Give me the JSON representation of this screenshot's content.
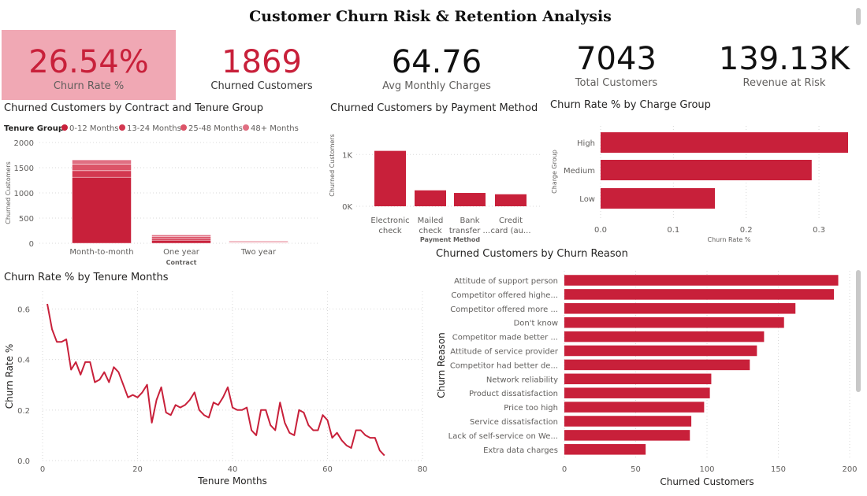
{
  "title": "Customer Churn Risk & Retention Analysis",
  "kpis": [
    {
      "value": "26.54%",
      "label": "Churn Rate %"
    },
    {
      "value": "1869",
      "label": "Churned Customers"
    },
    {
      "value": "64.76",
      "label": "Avg Monthly Charges"
    },
    {
      "value": "7043",
      "label": "Total Customers"
    },
    {
      "value": "139.13K",
      "label": "Revenue at Risk"
    }
  ],
  "colors": {
    "accent": "#c8203a",
    "kpi_red": "#c8203a",
    "kpi_dark": "#111111",
    "kpi_highlight_bg": "#f0a8b4",
    "tenure_0_12": "#c8203a",
    "tenure_13_24": "#d33850",
    "tenure_25_48": "#dc5468",
    "tenure_48_plus": "#e06f82"
  },
  "chart_data": [
    {
      "id": "contract",
      "type": "bar",
      "stacked": true,
      "title": "Churned Customers by Contract and Tenure Group",
      "legend_title": "Tenure Group",
      "legend_position": "top-left",
      "categories": [
        "Month-to-month",
        "One year",
        "Two year"
      ],
      "series": [
        {
          "name": "0-12 Months",
          "values": [
            1310,
            60,
            10
          ]
        },
        {
          "name": "13-24 Months",
          "values": [
            130,
            35,
            10
          ]
        },
        {
          "name": "25-48 Months",
          "values": [
            130,
            35,
            12
          ]
        },
        {
          "name": "48+ Months",
          "values": [
            85,
            36,
            16
          ]
        }
      ],
      "xlabel": "Contract",
      "ylabel": "Churned Customers",
      "ylim": [
        0,
        2000
      ],
      "yticks": [
        "0",
        "500",
        "1000",
        "1500",
        "2000"
      ],
      "grid": true
    },
    {
      "id": "payment",
      "type": "bar",
      "title": "Churned Customers by Payment Method",
      "categories": [
        "Electronic check",
        "Mailed check",
        "Bank transfer ...",
        "Credit card (au..."
      ],
      "category_lines": [
        [
          "Electronic",
          "check"
        ],
        [
          "Mailed",
          "check"
        ],
        [
          "Bank",
          "transfer ..."
        ],
        [
          "Credit",
          "card (au..."
        ]
      ],
      "values": [
        1071,
        308,
        258,
        232
      ],
      "xlabel": "Payment Method",
      "ylabel": "Churned Customers",
      "ylim": [
        0,
        1400
      ],
      "yticks": [
        "0K",
        "1K"
      ],
      "grid": true
    },
    {
      "id": "charge",
      "type": "bar",
      "orientation": "horizontal",
      "title": "Churn Rate % by Charge Group",
      "categories": [
        "High",
        "Medium",
        "Low"
      ],
      "values": [
        0.34,
        0.29,
        0.157
      ],
      "xlabel": "Churn Rate %",
      "ylabel": "Charge Group",
      "xlim": [
        0,
        0.34
      ],
      "xticks": [
        "0.0",
        "0.1",
        "0.2",
        "0.3"
      ],
      "grid": true
    },
    {
      "id": "tenure",
      "type": "line",
      "title": "Churn Rate % by Tenure Months",
      "x": [
        1,
        2,
        3,
        4,
        5,
        6,
        7,
        8,
        9,
        10,
        11,
        12,
        13,
        14,
        15,
        16,
        17,
        18,
        19,
        20,
        21,
        22,
        23,
        24,
        25,
        26,
        27,
        28,
        29,
        30,
        31,
        32,
        33,
        34,
        35,
        36,
        37,
        38,
        39,
        40,
        41,
        42,
        43,
        44,
        45,
        46,
        47,
        48,
        49,
        50,
        51,
        52,
        53,
        54,
        55,
        56,
        57,
        58,
        59,
        60,
        61,
        62,
        63,
        64,
        65,
        66,
        67,
        68,
        69,
        70,
        71,
        72
      ],
      "values": [
        0.62,
        0.52,
        0.47,
        0.47,
        0.48,
        0.36,
        0.39,
        0.34,
        0.39,
        0.39,
        0.31,
        0.32,
        0.35,
        0.31,
        0.37,
        0.35,
        0.3,
        0.25,
        0.26,
        0.25,
        0.27,
        0.3,
        0.15,
        0.24,
        0.29,
        0.19,
        0.18,
        0.22,
        0.21,
        0.22,
        0.24,
        0.27,
        0.2,
        0.18,
        0.17,
        0.23,
        0.22,
        0.25,
        0.29,
        0.21,
        0.2,
        0.2,
        0.21,
        0.12,
        0.1,
        0.2,
        0.2,
        0.14,
        0.12,
        0.23,
        0.15,
        0.11,
        0.1,
        0.2,
        0.19,
        0.14,
        0.12,
        0.12,
        0.18,
        0.16,
        0.09,
        0.11,
        0.08,
        0.06,
        0.05,
        0.12,
        0.12,
        0.1,
        0.09,
        0.09,
        0.04,
        0.02
      ],
      "xlabel": "Tenure Months",
      "ylabel": "Churn Rate %",
      "xlim": [
        0,
        80
      ],
      "ylim": [
        0,
        0.67
      ],
      "xticks": [
        "0",
        "20",
        "40",
        "60",
        "80"
      ],
      "yticks": [
        "0.0",
        "0.2",
        "0.4",
        "0.6"
      ],
      "grid": true
    },
    {
      "id": "reason",
      "type": "bar",
      "orientation": "horizontal",
      "title": "Churned Customers by Churn Reason",
      "categories": [
        "Attitude of support person",
        "Competitor offered highe...",
        "Competitor offered more ...",
        "Don't know",
        "Competitor made better ...",
        "Attitude of service provider",
        "Competitor had better de...",
        "Network reliability",
        "Product dissatisfaction",
        "Price too high",
        "Service dissatisfaction",
        "Lack of self-service on We...",
        "Extra data charges"
      ],
      "values": [
        192,
        189,
        162,
        154,
        140,
        135,
        130,
        103,
        102,
        98,
        89,
        88,
        57
      ],
      "xlabel": "Churned Customers",
      "ylabel": "Churn Reason",
      "xlim": [
        0,
        200
      ],
      "xticks": [
        "0",
        "50",
        "100",
        "150",
        "200"
      ],
      "grid": true
    }
  ]
}
